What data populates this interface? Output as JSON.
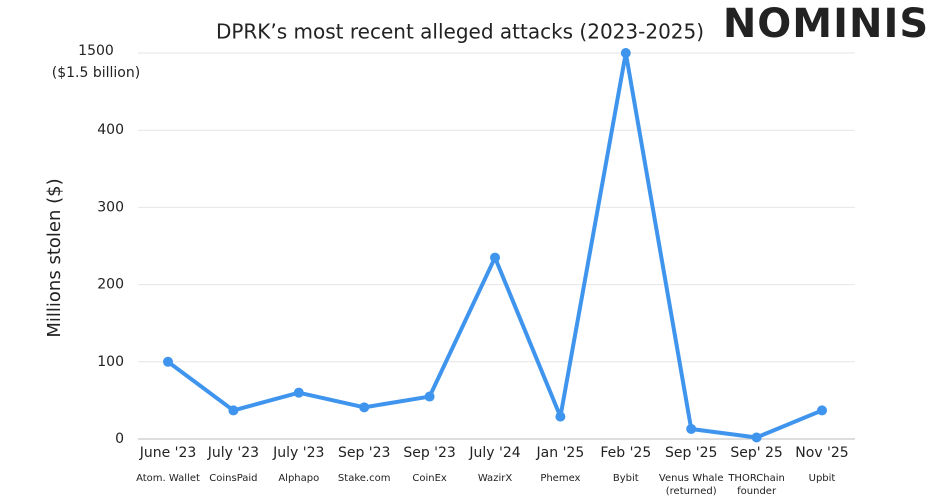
{
  "chart_data": {
    "type": "line",
    "title": "DPRK’s most recent alleged attacks (2023-2025)",
    "logo": "NOMINIS",
    "y_label": "Millions stolen  ($)",
    "top_tick_note": "($1.5 billion)",
    "categories": [
      "June '23",
      "July '23",
      "July '23",
      "Sep '23",
      "Sep '23",
      "July '24",
      "Jan '25",
      "Feb '25",
      "Sep '25",
      "Sep' 25",
      "Nov '25"
    ],
    "victims": [
      [
        "Atom. Wallet"
      ],
      [
        "CoinsPaid"
      ],
      [
        "Alphapo"
      ],
      [
        "Stake.com"
      ],
      [
        "CoinEx"
      ],
      [
        "WazirX"
      ],
      [
        "Phemex"
      ],
      [
        "Bybit"
      ],
      [
        "Venus Whale",
        "(returned)"
      ],
      [
        "THORChain",
        "founder"
      ],
      [
        "Upbit"
      ]
    ],
    "series": [
      {
        "name": "Millions stolen",
        "color": "#3f95ee",
        "values": [
          100,
          37,
          60,
          41,
          55,
          235,
          29,
          1500,
          13,
          2,
          37
        ]
      }
    ],
    "ylim": [
      0,
      1500
    ],
    "yticks": [
      0,
      100,
      200,
      300,
      400,
      1500
    ],
    "grid": true
  }
}
